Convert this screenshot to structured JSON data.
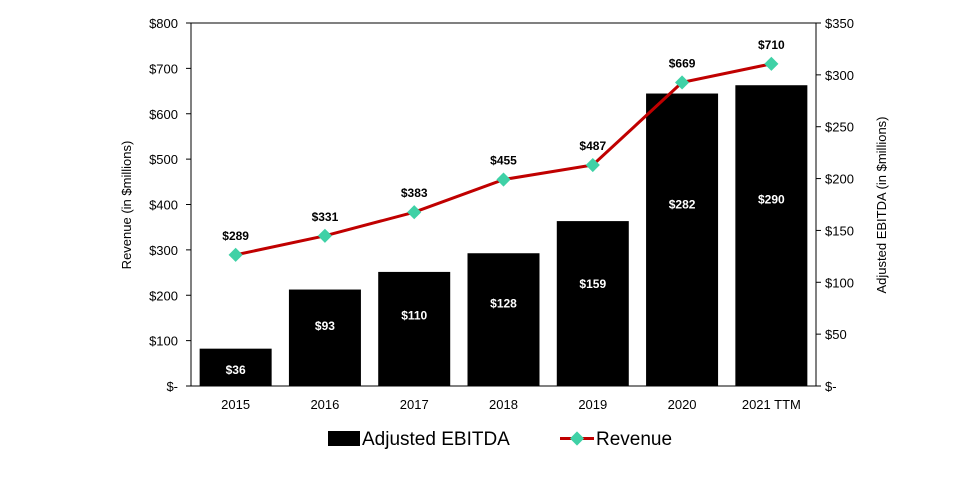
{
  "chart_data": {
    "type": "bar",
    "categories": [
      "2015",
      "2016",
      "2017",
      "2018",
      "2019",
      "2020",
      "2021 TTM"
    ],
    "series": [
      {
        "name": "Adjusted EBITDA",
        "type": "bar",
        "axis": "right",
        "values": [
          36,
          93,
          110,
          128,
          159,
          282,
          290
        ],
        "labels": [
          "$36",
          "$93",
          "$110",
          "$128",
          "$159",
          "$282",
          "$290"
        ],
        "color": "#000000"
      },
      {
        "name": "Revenue",
        "type": "line",
        "axis": "left",
        "values": [
          289,
          331,
          383,
          455,
          487,
          669,
          710
        ],
        "labels": [
          "$289",
          "$331",
          "$383",
          "$455",
          "$487",
          "$669",
          "$710"
        ],
        "line_color": "#c00000",
        "marker_color": "#3fd1a6"
      }
    ],
    "ylabel": "Revenue (in $millions)",
    "y2label": "Adjusted EBITDA (in $millions)",
    "ylim": [
      0,
      800
    ],
    "y2lim": [
      0,
      350
    ],
    "yticks": [
      "$-",
      "$100",
      "$200",
      "$300",
      "$400",
      "$500",
      "$600",
      "$700",
      "$800"
    ],
    "y2ticks": [
      "$-",
      "$50",
      "$100",
      "$150",
      "$200",
      "$250",
      "$300",
      "$350"
    ],
    "grid": false,
    "legend_position": "bottom"
  }
}
